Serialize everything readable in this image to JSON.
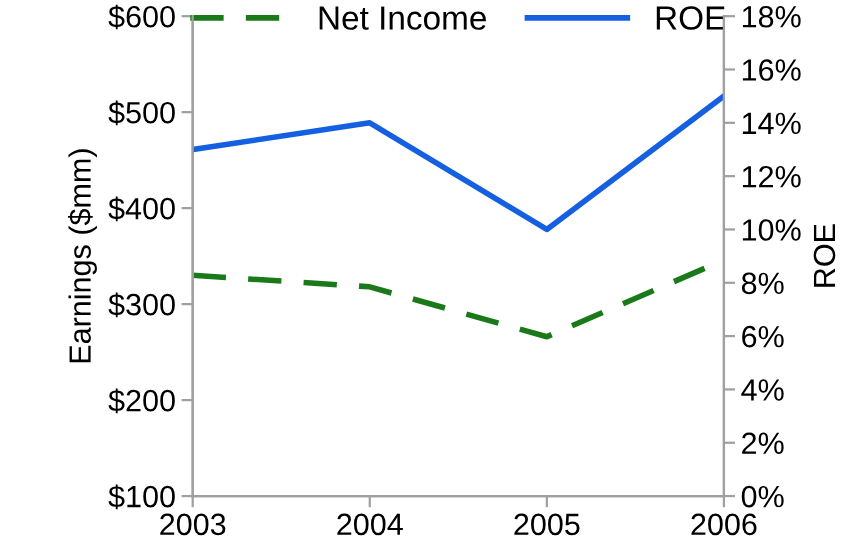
{
  "chart_data": {
    "type": "line",
    "ylabel": "Earnings ($mm)",
    "y2label": "ROE",
    "x": [
      2003,
      2004,
      2005,
      2006
    ],
    "xlim": [
      2003,
      2006
    ],
    "xticks": [
      2003,
      2004,
      2005,
      2006
    ],
    "ylim": [
      100,
      600
    ],
    "yticks": [
      {
        "value": 100,
        "label": "$100"
      },
      {
        "value": 200,
        "label": "$200"
      },
      {
        "value": 300,
        "label": "$300"
      },
      {
        "value": 400,
        "label": "$400"
      },
      {
        "value": 500,
        "label": "$500"
      },
      {
        "value": 600,
        "label": "$600"
      }
    ],
    "y2lim": [
      0,
      18
    ],
    "y2ticks": [
      {
        "value": 0,
        "label": "0%"
      },
      {
        "value": 2,
        "label": "2%"
      },
      {
        "value": 4,
        "label": "4%"
      },
      {
        "value": 6,
        "label": "6%"
      },
      {
        "value": 8,
        "label": "8%"
      },
      {
        "value": 10,
        "label": "10%"
      },
      {
        "value": 12,
        "label": "12%"
      },
      {
        "value": 14,
        "label": "14%"
      },
      {
        "value": 16,
        "label": "16%"
      },
      {
        "value": 18,
        "label": "18%"
      }
    ],
    "legend": "top",
    "grid": false,
    "series": [
      {
        "name": "Net Income",
        "color": "#1a7a1a",
        "line_style": "dashed",
        "values": [
          330,
          318,
          266,
          346
        ]
      },
      {
        "name": "ROE",
        "color": "#1560e0",
        "line_style": "solid",
        "axis": "y2",
        "values": [
          13.0,
          14.0,
          10.0,
          15.0
        ]
      }
    ]
  }
}
